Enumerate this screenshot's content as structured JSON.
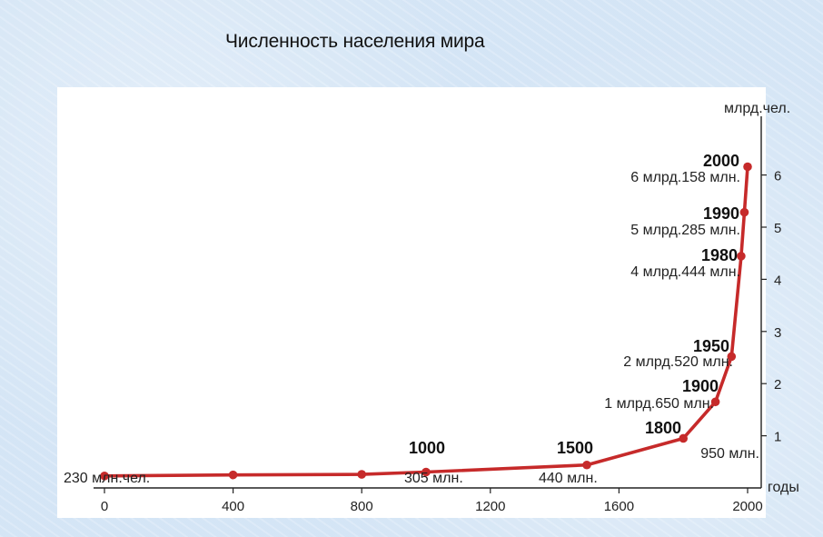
{
  "title": "Численность населения мира",
  "chart_data": {
    "type": "line",
    "title": "Численность населения мира",
    "xlabel": "годы",
    "ylabel": "млрд.чел.",
    "x_ticks": [
      0,
      400,
      800,
      1200,
      1600,
      2000
    ],
    "y_ticks": [
      1,
      2,
      3,
      4,
      5,
      6
    ],
    "xlim": [
      -50,
      2000
    ],
    "ylim": [
      0,
      6.6
    ],
    "color": "#c62a2a",
    "series": [
      {
        "name": "",
        "x": [
          0,
          400,
          800,
          1000,
          1500,
          1800,
          1900,
          1950,
          1980,
          1990,
          2000
        ],
        "y": [
          0.23,
          0.25,
          0.26,
          0.305,
          0.44,
          0.95,
          1.65,
          2.52,
          4.444,
          5.285,
          6.158
        ]
      }
    ],
    "annotations": [
      {
        "year": "",
        "value": "230 млн.чел.",
        "x": 0
      },
      {
        "year": "1000",
        "value": "305 млн.",
        "x": 1000
      },
      {
        "year": "1500",
        "value": "440 млн.",
        "x": 1500
      },
      {
        "year": "1800",
        "value": "950 млн.",
        "x": 1800
      },
      {
        "year": "1900",
        "value": "1 млрд.650 млн.",
        "x": 1900
      },
      {
        "year": "1950",
        "value": "2 млрд.520 млн.",
        "x": 1950
      },
      {
        "year": "1980",
        "value": "4 млрд.444 млн.",
        "x": 1980
      },
      {
        "year": "1990",
        "value": "5 млрд.285 млн.",
        "x": 1990
      },
      {
        "year": "2000",
        "value": "6 млрд.158 млн.",
        "x": 2000
      }
    ]
  }
}
